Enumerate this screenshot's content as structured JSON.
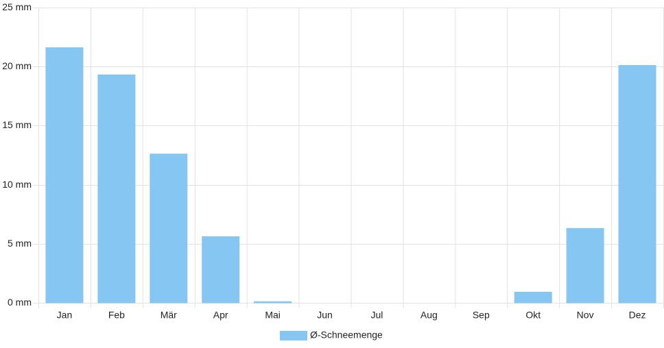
{
  "chart_data": {
    "type": "bar",
    "categories": [
      "Jan",
      "Feb",
      "Mär",
      "Apr",
      "Mai",
      "Jun",
      "Jul",
      "Aug",
      "Sep",
      "Okt",
      "Nov",
      "Dez"
    ],
    "series": [
      {
        "name": "Ø-Schneemenge",
        "color": "#86c6f2",
        "values": [
          21.6,
          19.3,
          12.6,
          5.6,
          0.1,
          0,
          0,
          0,
          0,
          0.9,
          6.3,
          20.1
        ]
      }
    ],
    "ylim": [
      0,
      25
    ],
    "yticks": [
      {
        "value": 0,
        "label": "0 mm"
      },
      {
        "value": 5,
        "label": "5 mm"
      },
      {
        "value": 10,
        "label": "10 mm"
      },
      {
        "value": 15,
        "label": "15 mm"
      },
      {
        "value": 20,
        "label": "20 mm"
      },
      {
        "value": 25,
        "label": "25 mm"
      }
    ],
    "grid": true,
    "legend": "bottom"
  }
}
